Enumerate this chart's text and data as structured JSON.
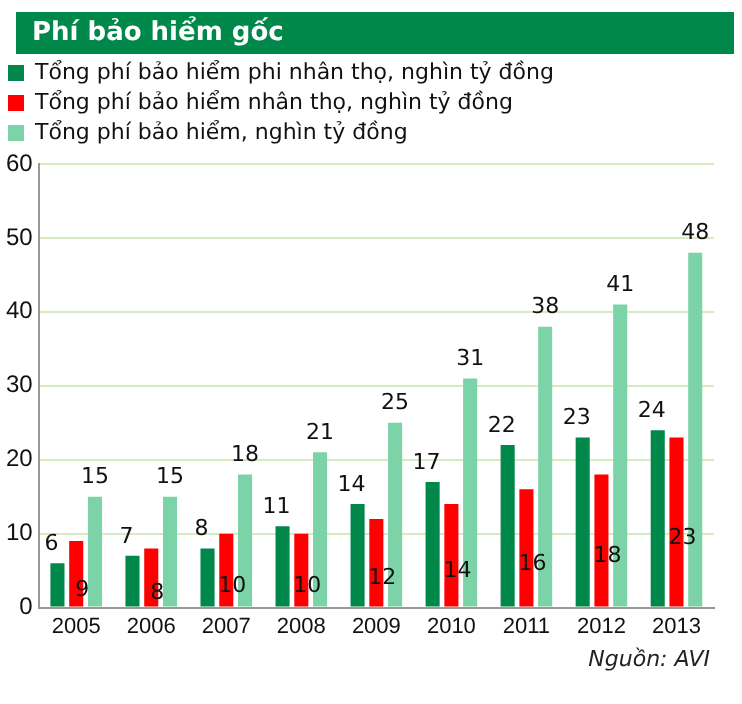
{
  "chart_data": {
    "type": "bar",
    "title": "Phí bảo hiểm gốc",
    "categories": [
      "2005",
      "2006",
      "2007",
      "2008",
      "2009",
      "2010",
      "2011",
      "2012",
      "2013"
    ],
    "series": [
      {
        "name": "Tổng phí bảo hiểm phi nhân thọ, nghìn tỷ đồng",
        "color": "#00874a",
        "values": [
          6,
          7,
          8,
          11,
          14,
          17,
          22,
          23,
          24
        ]
      },
      {
        "name": "Tổng phí bảo hiểm nhân thọ, nghìn tỷ đồng",
        "color": "#ff0000",
        "values": [
          9,
          8,
          10,
          10,
          12,
          14,
          16,
          18,
          23
        ]
      },
      {
        "name": "Tổng phí bảo hiểm, nghìn tỷ đồng",
        "color": "#7dd3a8",
        "values": [
          15,
          15,
          18,
          21,
          25,
          31,
          38,
          41,
          48
        ]
      }
    ],
    "ylim": [
      0,
      60
    ],
    "yticks": [
      0,
      10,
      20,
      30,
      40,
      50,
      60
    ],
    "grid": "y",
    "legend": "top left",
    "data_labels": true,
    "annotations": [
      "Nguồn: AVI"
    ]
  }
}
